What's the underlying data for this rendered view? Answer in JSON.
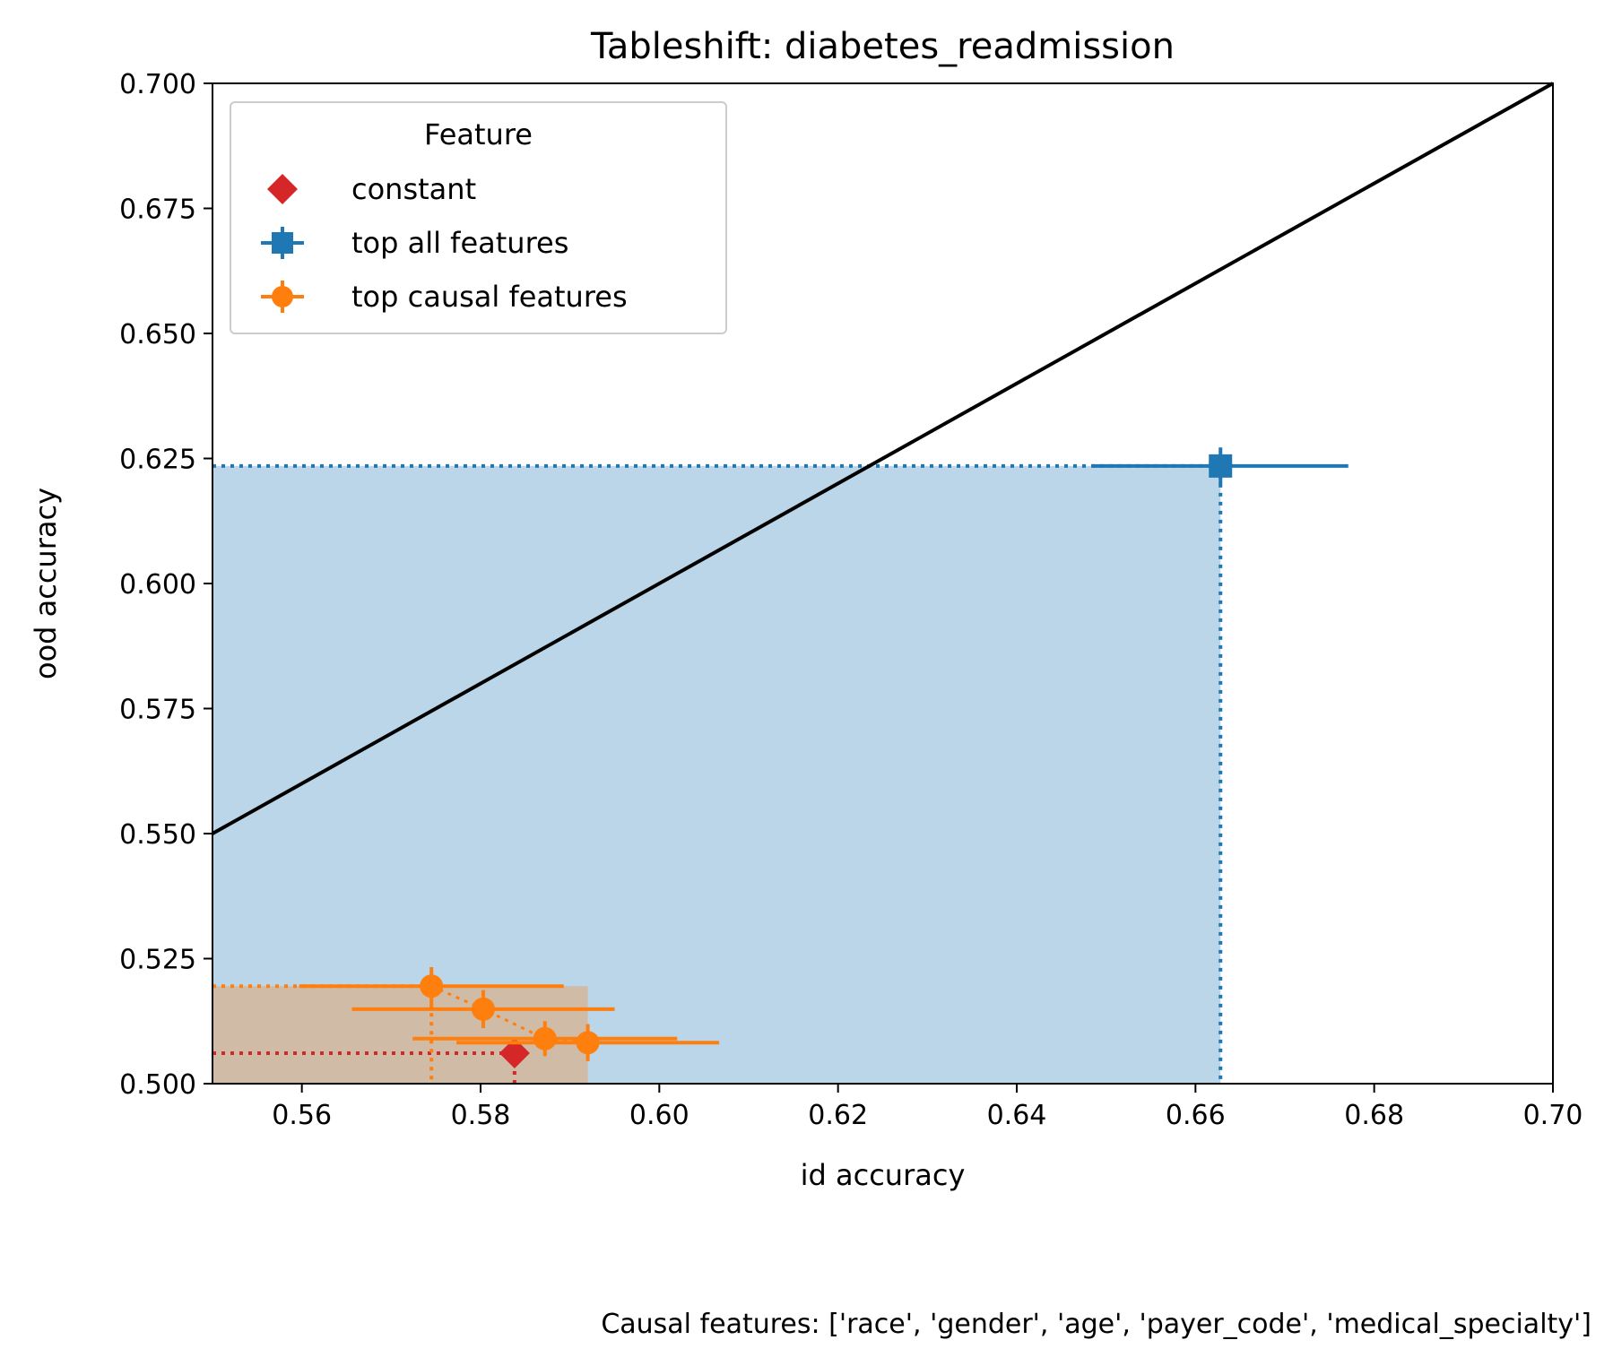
{
  "chart_data": {
    "type": "scatter",
    "title": "Tableshift: diabetes_readmission",
    "xlabel": "id accuracy",
    "ylabel": "ood accuracy",
    "xlim": [
      0.55,
      0.7
    ],
    "ylim": [
      0.5,
      0.7
    ],
    "xticks": [
      "0.56",
      "0.58",
      "0.60",
      "0.62",
      "0.64",
      "0.66",
      "0.68",
      "0.70"
    ],
    "xtick_values": [
      0.56,
      0.58,
      0.6,
      0.62,
      0.64,
      0.66,
      0.68,
      0.7
    ],
    "yticks": [
      "0.500",
      "0.525",
      "0.550",
      "0.575",
      "0.600",
      "0.625",
      "0.650",
      "0.675",
      "0.700"
    ],
    "ytick_values": [
      0.5,
      0.525,
      0.55,
      0.575,
      0.6,
      0.625,
      0.65,
      0.675,
      0.7
    ],
    "grid": false,
    "diagonal": {
      "x": [
        0.55,
        0.7
      ],
      "y": [
        0.55,
        0.7
      ],
      "color": "#000000"
    },
    "legend": {
      "title": "Feature",
      "placement": "top-left",
      "entries": [
        {
          "label": "constant",
          "marker": "diamond",
          "color": "#d62728"
        },
        {
          "label": "top all features",
          "marker": "square",
          "color": "#1f77b4"
        },
        {
          "label": "top causal features",
          "marker": "circle",
          "color": "#ff7f0e"
        }
      ]
    },
    "series": [
      {
        "name": "constant",
        "marker": "diamond",
        "color": "#d62728",
        "points": [
          {
            "x": 0.5838,
            "y": 0.5061,
            "xerr": 0,
            "yerr": 0
          }
        ],
        "shaded": false
      },
      {
        "name": "top all features",
        "marker": "square",
        "color": "#1f77b4",
        "shade_color": "#1f77b4",
        "points": [
          {
            "x": 0.6628,
            "y": 0.6235,
            "xerr": 0.0143,
            "yerr": 0.0037
          }
        ],
        "shaded": true
      },
      {
        "name": "top causal features",
        "marker": "circle",
        "color": "#ff7f0e",
        "shade_color": "#ff7f0e",
        "points": [
          {
            "x": 0.5745,
            "y": 0.5195,
            "xerr": 0.0148,
            "yerr": 0.0038
          },
          {
            "x": 0.5803,
            "y": 0.5149,
            "xerr": 0.0147,
            "yerr": 0.0038
          },
          {
            "x": 0.5872,
            "y": 0.509,
            "xerr": 0.0148,
            "yerr": 0.0035
          },
          {
            "x": 0.592,
            "y": 0.5082,
            "xerr": 0.0147,
            "yerr": 0.0037
          }
        ],
        "shaded": true
      }
    ],
    "caption": "Causal features: ['race', 'gender', 'age', 'payer_code', 'medical_specialty']"
  }
}
